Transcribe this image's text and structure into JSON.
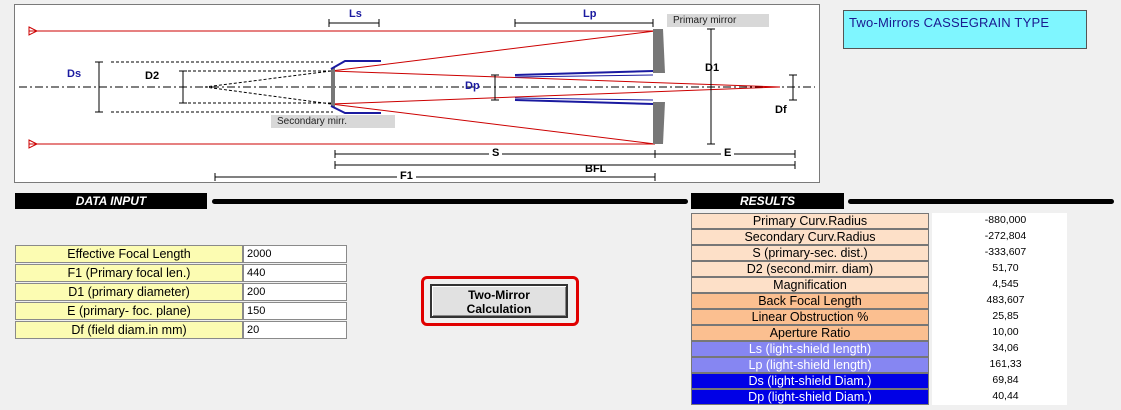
{
  "diagram": {
    "labels": {
      "ls": "Ls",
      "lp": "Lp",
      "ds": "Ds",
      "d2": "D2",
      "dp": "Dp",
      "d1": "D1",
      "df": "Df",
      "s": "S",
      "e": "E",
      "bfl": "BFL",
      "f1": "F1"
    },
    "primary_mirror": "Primary mirror",
    "secondary_mirror": "Secondary mirr."
  },
  "title": "Two-Mirrors  CASSEGRAIN TYPE",
  "input": {
    "heading": "DATA  INPUT",
    "rows": [
      {
        "label": "Effective Focal Length",
        "value": "2000"
      },
      {
        "label": "F1 (Primary focal len.)",
        "value": "440"
      },
      {
        "label": "D1 (primary diameter)",
        "value": "200"
      },
      {
        "label": "E (primary- foc. plane)",
        "value": "150"
      },
      {
        "label": "Df (field  diam.in mm)",
        "value": "20"
      }
    ]
  },
  "calc_button": {
    "line1": "Two-Mirror",
    "line2": "Calculation"
  },
  "results": {
    "heading": "RESULTS",
    "rows": [
      {
        "label": "Primary Curv.Radius",
        "value": "-880,000",
        "bg": "#fde0c8",
        "fg": "#000000"
      },
      {
        "label": "Secondary Curv.Radius",
        "value": "-272,804",
        "bg": "#fde0c8",
        "fg": "#000000"
      },
      {
        "label": "S (primary-sec.  dist.)",
        "value": "-333,607",
        "bg": "#fde0c8",
        "fg": "#000000"
      },
      {
        "label": "D2 (second.mirr. diam)",
        "value": "51,70",
        "bg": "#fde0c8",
        "fg": "#000000"
      },
      {
        "label": "Magnification",
        "value": "4,545",
        "bg": "#fde0c8",
        "fg": "#000000"
      },
      {
        "label": "Back Focal Length",
        "value": "483,607",
        "bg": "#fbbf90",
        "fg": "#000000"
      },
      {
        "label": "Linear Obstruction %",
        "value": "25,85",
        "bg": "#fbbf90",
        "fg": "#000000"
      },
      {
        "label": "Aperture Ratio",
        "value": "10,00",
        "bg": "#fbbf90",
        "fg": "#000000"
      },
      {
        "label": "Ls (light-shield length)",
        "value": "34,06",
        "bg": "#8686f2",
        "fg": "#ffffff"
      },
      {
        "label": "Lp (light-shield length)",
        "value": "161,33",
        "bg": "#8686f2",
        "fg": "#ffffff"
      },
      {
        "label": "Ds (light-shield Diam.)",
        "value": "69,84",
        "bg": "#0000e6",
        "fg": "#ffffff"
      },
      {
        "label": "Dp (light-shield Diam.)",
        "value": "40,44",
        "bg": "#0000e6",
        "fg": "#ffffff"
      }
    ]
  }
}
